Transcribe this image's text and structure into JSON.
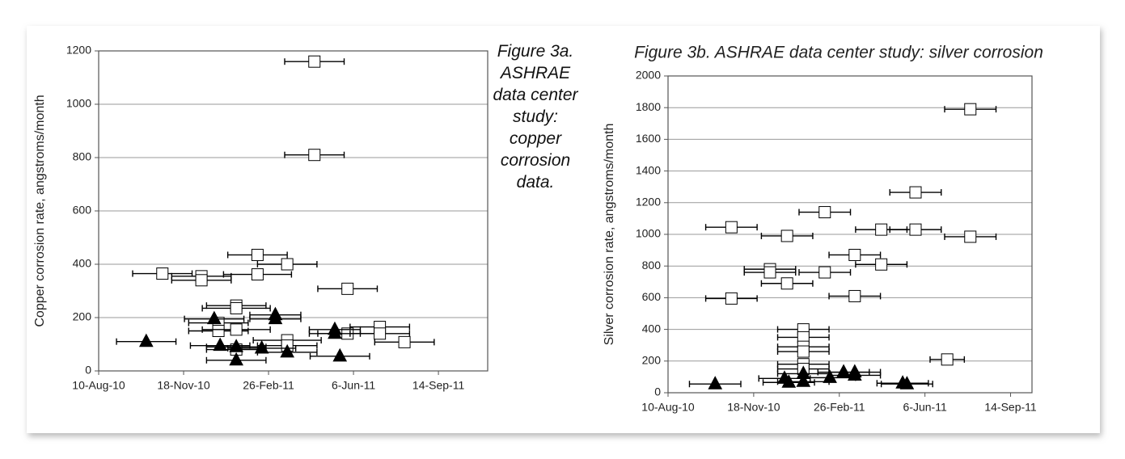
{
  "chart_data": [
    {
      "type": "scatter",
      "title": "Figure 3a. ASHRAE data center study: copper corrosion data.",
      "y_label": "Copper corrosion rate, angstroms/month",
      "xlim": [
        "2010-08-10",
        "2011-11-11"
      ],
      "xticks": [
        {
          "value": "2010-08-10",
          "label": "10-Aug-10"
        },
        {
          "value": "2010-11-18",
          "label": "18-Nov-10"
        },
        {
          "value": "2011-02-26",
          "label": "26-Feb-11"
        },
        {
          "value": "2011-06-06",
          "label": "6-Jun-11"
        },
        {
          "value": "2011-09-14",
          "label": "14-Sep-11"
        }
      ],
      "ylim": [
        0,
        1200
      ],
      "yticks": [
        0,
        200,
        400,
        600,
        800,
        1000,
        1200
      ],
      "grid": true,
      "series": [
        {
          "marker": "square",
          "color": "#ffffff",
          "x": [
            "2011-04-21",
            "2011-04-21",
            "2010-10-24",
            "2010-12-09",
            "2010-12-09",
            "2011-02-13",
            "2011-02-13",
            "2011-03-20",
            "2011-05-30",
            "2011-01-19",
            "2011-01-19",
            "2010-12-29",
            "2010-12-29",
            "2011-01-19",
            "2011-03-20",
            "2011-03-20",
            "2011-05-30",
            "2011-07-07",
            "2011-07-07",
            "2011-08-05",
            "2011-01-19"
          ],
          "values": [
            1160,
            810,
            365,
            355,
            340,
            435,
            362,
            400,
            308,
            245,
            235,
            180,
            150,
            155,
            115,
            95,
            140,
            165,
            140,
            108,
            80
          ],
          "xerr": [
            35,
            35,
            35,
            35,
            35,
            35,
            40,
            35,
            35,
            35,
            40,
            35,
            35,
            40,
            40,
            35,
            35,
            35,
            35,
            35,
            35
          ]
        },
        {
          "marker": "triangle",
          "color": "#000000",
          "x": [
            "2010-10-05",
            "2010-12-24",
            "2010-12-31",
            "2011-01-19",
            "2011-01-19",
            "2011-02-18",
            "2011-03-06",
            "2011-03-06",
            "2011-03-20",
            "2011-05-15",
            "2011-05-15",
            "2011-05-21"
          ],
          "values": [
            110,
            195,
            95,
            40,
            90,
            85,
            210,
            195,
            70,
            155,
            140,
            55
          ],
          "xerr": [
            35,
            35,
            35,
            35,
            35,
            40,
            30,
            30,
            35,
            30,
            30,
            35
          ]
        }
      ]
    },
    {
      "type": "scatter",
      "title": "Figure 3b. ASHRAE data center study: silver corrosion",
      "y_label": "Silver corrosion rate, angstroms/month",
      "xlim": [
        "2010-08-10",
        "2011-10-09"
      ],
      "xticks": [
        {
          "value": "2010-08-10",
          "label": "10-Aug-10"
        },
        {
          "value": "2010-11-18",
          "label": "18-Nov-10"
        },
        {
          "value": "2011-02-26",
          "label": "26-Feb-11"
        },
        {
          "value": "2011-06-06",
          "label": "6-Jun-11"
        },
        {
          "value": "2011-09-14",
          "label": "14-Sep-11"
        }
      ],
      "ylim": [
        0,
        2000
      ],
      "yticks": [
        0,
        200,
        400,
        600,
        800,
        1000,
        1200,
        1400,
        1600,
        1800,
        2000
      ],
      "grid": true,
      "series": [
        {
          "marker": "square",
          "color": "#ffffff",
          "x": [
            "2010-10-23",
            "2010-12-27",
            "2011-02-09",
            "2011-05-26",
            "2011-04-16",
            "2011-05-26",
            "2011-07-29",
            "2011-07-29",
            "2010-12-07",
            "2010-12-07",
            "2010-12-27",
            "2011-02-09",
            "2011-03-16",
            "2011-04-16",
            "2010-10-23",
            "2011-03-16",
            "2011-01-15",
            "2011-01-15",
            "2011-01-15",
            "2011-01-15",
            "2011-01-15",
            "2011-01-15",
            "2011-07-02"
          ],
          "values": [
            1045,
            990,
            1140,
            1265,
            1030,
            1030,
            1790,
            985,
            780,
            760,
            690,
            760,
            870,
            810,
            595,
            610,
            400,
            350,
            290,
            260,
            180,
            150,
            210
          ],
          "xerr": [
            30,
            30,
            30,
            30,
            30,
            30,
            30,
            30,
            30,
            30,
            30,
            30,
            30,
            30,
            30,
            30,
            30,
            30,
            30,
            30,
            30,
            30,
            20
          ]
        },
        {
          "marker": "triangle",
          "color": "#000000",
          "x": [
            "2010-10-04",
            "2010-12-24",
            "2010-12-29",
            "2011-01-15",
            "2011-01-15",
            "2011-02-15",
            "2011-03-03",
            "2011-03-16",
            "2011-03-16",
            "2011-05-11",
            "2011-05-16"
          ],
          "values": [
            55,
            90,
            65,
            70,
            120,
            95,
            130,
            130,
            110,
            60,
            55
          ],
          "xerr": [
            30,
            30,
            30,
            30,
            30,
            30,
            30,
            30,
            30,
            30,
            30
          ]
        }
      ]
    }
  ]
}
